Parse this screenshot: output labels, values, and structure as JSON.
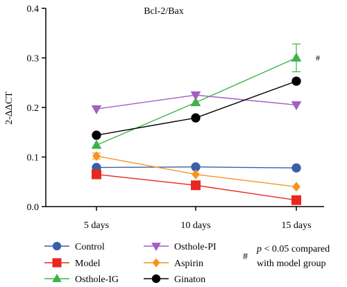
{
  "chart_data": {
    "type": "line",
    "title": "Bcl-2/Bax",
    "ylabel": "2-ΔΔCT",
    "xlabel": "",
    "categories": [
      "5 days",
      "10 days",
      "15 days"
    ],
    "ylim": [
      0,
      0.4
    ],
    "yticks": [
      "0.0",
      "0.1",
      "0.2",
      "0.3",
      "0.4"
    ],
    "grid": false,
    "legend_position": "bottom",
    "series": [
      {
        "name": "Control",
        "values": [
          0.079,
          0.08,
          0.078
        ],
        "color": "#3a5fa8",
        "marker": "circle"
      },
      {
        "name": "Model",
        "values": [
          0.065,
          0.043,
          0.013
        ],
        "color": "#e8281e",
        "marker": "square"
      },
      {
        "name": "Osthole-IG",
        "values": [
          0.124,
          0.21,
          0.3
        ],
        "color": "#3cb34a",
        "marker": "triangle-up",
        "error": [
          0,
          0,
          0.028
        ]
      },
      {
        "name": "Osthole-PI",
        "values": [
          0.197,
          0.225,
          0.205
        ],
        "color": "#a25fc4",
        "marker": "triangle-down"
      },
      {
        "name": "Aspirin",
        "values": [
          0.102,
          0.065,
          0.04
        ],
        "color": "#f7941d",
        "marker": "diamond",
        "error": [
          0.006,
          0,
          0
        ]
      },
      {
        "name": "Ginaton",
        "values": [
          0.144,
          0.179,
          0.253
        ],
        "color": "#000000",
        "marker": "circle"
      }
    ],
    "annotations": [
      {
        "text": "#",
        "category": "15 days",
        "y": 0.3
      }
    ],
    "footnote": {
      "symbol": "#",
      "line1_italic": "p",
      "line1_rest": " < 0.05 compared",
      "line2": "with model group"
    }
  }
}
